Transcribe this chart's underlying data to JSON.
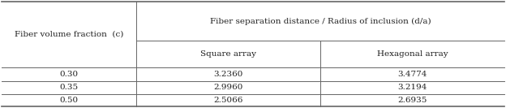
{
  "col0_header": "Fiber volume fraction  (c)",
  "col1_header_top": "Fiber separation distance / Radius of inclusion (d/a)",
  "col1_header_sub": "Square array",
  "col2_header_sub": "Hexagonal array",
  "rows": [
    {
      "c": "0.30",
      "square": "3.2360",
      "hex": "3.4774"
    },
    {
      "c": "0.35",
      "square": "2.9960",
      "hex": "3.2194"
    },
    {
      "c": "0.50",
      "square": "2.5066",
      "hex": "2.6935"
    }
  ],
  "background": "#ffffff",
  "line_color": "#666666",
  "text_color": "#222222",
  "font_size": 7.5
}
